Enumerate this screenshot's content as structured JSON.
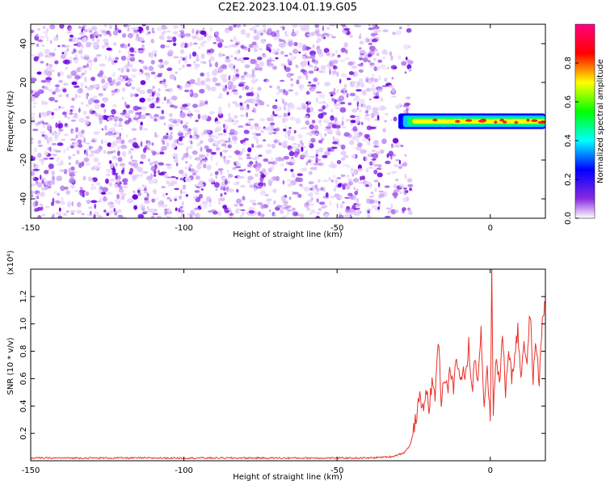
{
  "title": "C2E2.2023.104.01.19.G05",
  "chart_data": [
    {
      "type": "heatmap",
      "xlabel": "Height of straight line (km)",
      "ylabel": "Frequency (Hz)",
      "xlim": [
        -150,
        18
      ],
      "ylim": [
        -50,
        50
      ],
      "xticks": [
        -150,
        -100,
        -50,
        0
      ],
      "yticks": [
        -40,
        -20,
        0,
        20,
        40
      ],
      "noise_region_x": [
        -150,
        -30
      ],
      "signal_band": {
        "x_start": -30,
        "x_end": 18,
        "center_freq": 0,
        "half_width": 4
      },
      "colorbar": {
        "label": "Normalized spectral amplitude",
        "range": [
          0.0,
          1.0
        ],
        "ticks": [
          0.0,
          0.2,
          0.4,
          0.6,
          0.8
        ],
        "colors": [
          "#ffffff",
          "#8a2be2",
          "#0000ff",
          "#00ffff",
          "#00ff00",
          "#ffff00",
          "#ff0000",
          "#ff0080"
        ]
      }
    },
    {
      "type": "line",
      "xlabel": "Height of straight line (km)",
      "ylabel": "SNR (10 * v/v)",
      "multiplier_label": "(x10⁴)",
      "xlim": [
        -150,
        18
      ],
      "ylim": [
        0,
        1.4
      ],
      "xticks": [
        -150,
        -100,
        -50,
        0
      ],
      "yticks": [
        0.2,
        0.4,
        0.6,
        0.8,
        1.0,
        1.2
      ],
      "series": [
        {
          "color": "#e8322b",
          "x": [
            -150,
            -140,
            -130,
            -120,
            -110,
            -100,
            -90,
            -80,
            -70,
            -60,
            -50,
            -40,
            -32,
            -28,
            -26,
            -25,
            -24,
            -23,
            -22,
            -21,
            -20,
            -19,
            -18,
            -17,
            -16,
            -15,
            -14,
            -13,
            -12,
            -11,
            -10,
            -9,
            -8,
            -7,
            -6,
            -5,
            -4,
            -3,
            -2,
            -1,
            0,
            0.5,
            1,
            2,
            3,
            4,
            5,
            6,
            7,
            8,
            9,
            10,
            11,
            12,
            13,
            14,
            15,
            16,
            17,
            18
          ],
          "y": [
            0.02,
            0.02,
            0.02,
            0.02,
            0.02,
            0.02,
            0.02,
            0.02,
            0.02,
            0.02,
            0.02,
            0.02,
            0.03,
            0.06,
            0.12,
            0.22,
            0.35,
            0.45,
            0.38,
            0.52,
            0.4,
            0.55,
            0.48,
            0.9,
            0.45,
            0.62,
            0.5,
            0.68,
            0.52,
            0.78,
            0.58,
            0.65,
            0.6,
            0.85,
            0.5,
            0.75,
            0.62,
            0.95,
            0.4,
            0.7,
            0.3,
            1.37,
            0.35,
            0.8,
            0.55,
            0.92,
            0.5,
            0.85,
            0.6,
            0.78,
            0.95,
            0.62,
            0.88,
            0.7,
            1.1,
            0.6,
            0.88,
            0.55,
            1.05,
            1.15
          ]
        }
      ]
    }
  ]
}
